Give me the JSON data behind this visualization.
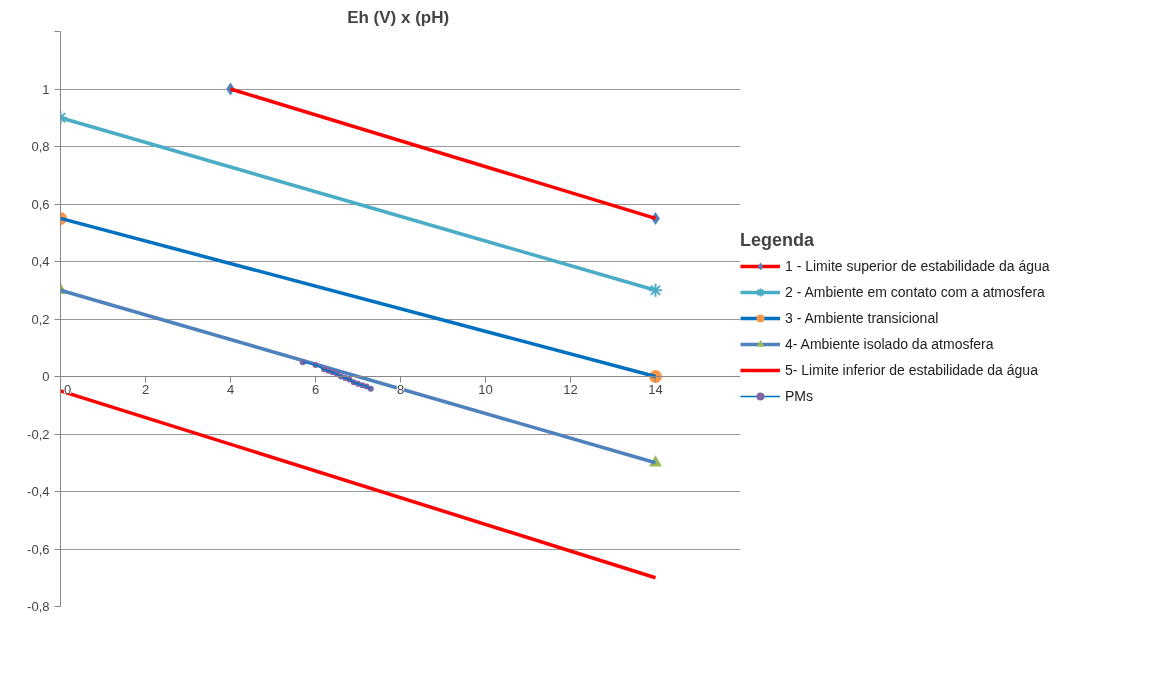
{
  "chart_data": {
    "type": "line",
    "title": "Eh (V) x  (pH)",
    "legend_title": "Legenda",
    "legend": "right",
    "grid": "y",
    "line_style": "solid",
    "xlim": [
      0,
      16
    ],
    "xticks": [
      0,
      2,
      4,
      6,
      8,
      10,
      12,
      14,
      {
        "value": 16,
        "label": null
      }
    ],
    "ylim": [
      -0.8,
      1.2
    ],
    "yticks": [
      {
        "value": -0.8,
        "label": "-0,8"
      },
      {
        "value": -0.6,
        "label": "-0,6"
      },
      {
        "value": -0.4,
        "label": "-0,4"
      },
      {
        "value": -0.2,
        "label": "-0,2"
      },
      0,
      {
        "value": 0.2,
        "label": "0,2"
      },
      {
        "value": 0.4,
        "label": "0,4"
      },
      {
        "value": 0.6,
        "label": "0,6"
      },
      {
        "value": 0.8,
        "label": "0,8"
      },
      1,
      {
        "value": 1.2,
        "label": null
      }
    ],
    "series": [
      {
        "name": "1 - Limite superior de estabilidade da água",
        "color": "#ff0000",
        "marker": "diamond",
        "colors": [
          "#4f81bd",
          "#4f81bd"
        ],
        "x": [
          4,
          14
        ],
        "values": [
          1,
          0.55
        ]
      },
      {
        "name": "2 - Ambiente em contato com a atmosfera",
        "color": "#4bacc6",
        "marker": "cross",
        "colors": [
          "#4bacc6",
          "#4bacc6"
        ],
        "x": [
          0,
          14
        ],
        "values": [
          0.9,
          0.3
        ]
      },
      {
        "name": "3 - Ambiente transicional",
        "color": "#0070c0",
        "marker": "circle",
        "colors": [
          "#f79646",
          "#f79646"
        ],
        "x": [
          0,
          14
        ],
        "values": [
          0.55,
          0
        ]
      },
      {
        "name": "4- Ambiente isolado da atmosfera",
        "color": "#4f81bd",
        "marker": "triangle",
        "colors": [
          "#9bbb59",
          "#9bbb59"
        ],
        "x": [
          0,
          14
        ],
        "values": [
          0.3,
          -0.3
        ]
      },
      {
        "name": "5- Limite inferior de estabilidade da água",
        "color": "#ff0000",
        "marker": "none",
        "x": [
          0,
          14
        ],
        "values": [
          -0.05,
          -0.7
        ]
      },
      {
        "name": "PMs",
        "color": "#0070c0",
        "marker": "circle",
        "colors": [
          "#8064a2",
          "#8064a2",
          "#8064a2",
          "#8064a2",
          "#8064a2",
          "#8064a2",
          "#8064a2",
          "#8064a2",
          "#8064a2",
          "#8064a2",
          "#8064a2",
          "#8064a2",
          "#8064a2",
          "#8064a2"
        ],
        "x": [
          5.7,
          6.0,
          6.2,
          6.3,
          6.4,
          6.5,
          6.6,
          6.7,
          6.8,
          6.9,
          7.0,
          7.1,
          7.2,
          7.3
        ],
        "values": [
          0.05,
          0.04,
          0.025,
          0.02,
          0.015,
          0.01,
          0.0,
          -0.005,
          -0.01,
          -0.02,
          -0.025,
          -0.03,
          -0.035,
          -0.043
        ]
      }
    ]
  }
}
